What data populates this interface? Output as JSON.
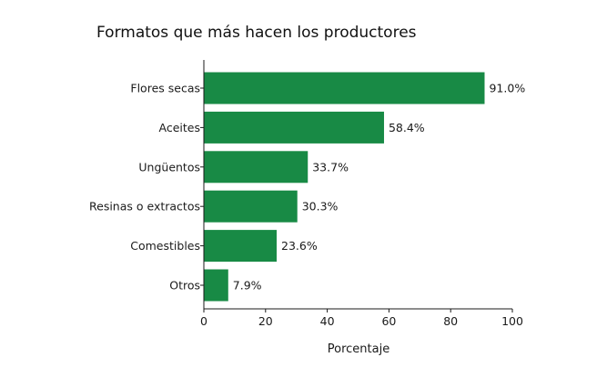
{
  "chart_data": {
    "type": "bar",
    "orientation": "horizontal",
    "title": "Formatos que más hacen los productores",
    "xlabel": "Porcentaje",
    "ylabel": "",
    "categories": [
      "Flores secas",
      "Aceites",
      "Ungüentos",
      "Resinas o extractos",
      "Comestibles",
      "Otros"
    ],
    "values": [
      91.0,
      58.4,
      33.7,
      30.3,
      23.6,
      7.9
    ],
    "value_labels": [
      "91.0%",
      "58.4%",
      "33.7%",
      "30.3%",
      "23.6%",
      "7.9%"
    ],
    "xlim": [
      0,
      100
    ],
    "xticks": [
      0,
      20,
      40,
      60,
      80,
      100
    ],
    "grid": false,
    "legend": "none",
    "bar_color": "#188a45"
  }
}
